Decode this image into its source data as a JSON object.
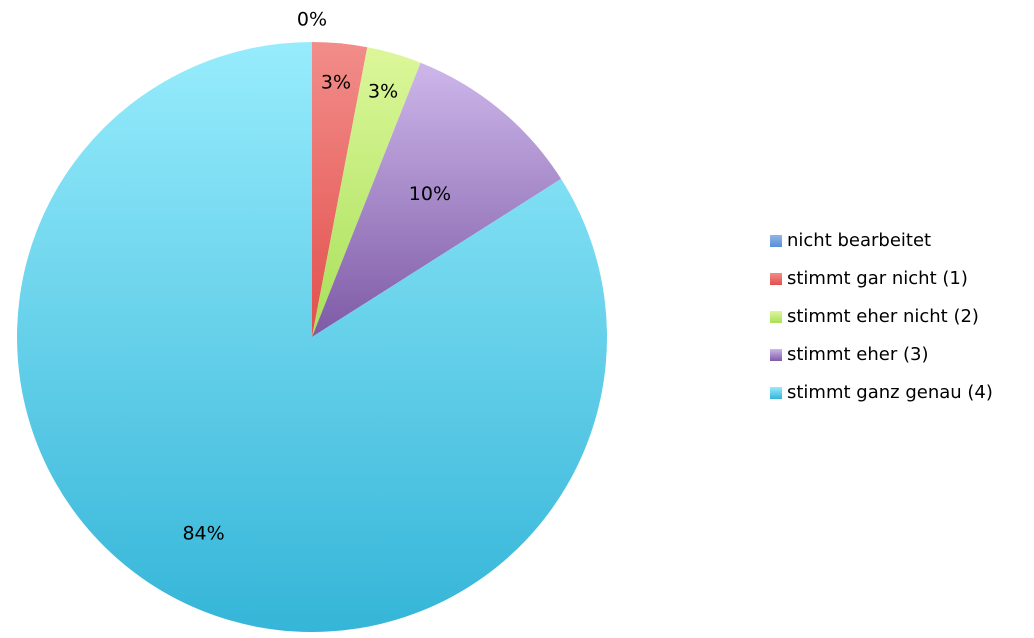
{
  "chart_data": {
    "type": "pie",
    "start_angle_deg": 90,
    "direction": "clockwise",
    "legend_position": "right",
    "slices": [
      {
        "name": "nicht bearbeitet",
        "value": 0,
        "label": "0%",
        "color": "#5a8ed6",
        "color_light": "#8fb6ea"
      },
      {
        "name": "stimmt gar nicht (1)",
        "value": 3,
        "label": "3%",
        "color": "#e2504c",
        "color_light": "#f28d8a"
      },
      {
        "name": "stimmt eher nicht (2)",
        "value": 3,
        "label": "3%",
        "color": "#a8e05a",
        "color_light": "#dcf79a"
      },
      {
        "name": "stimmt eher (3)",
        "value": 10,
        "label": "10%",
        "color": "#7e5aa6",
        "color_light": "#cdb7ea"
      },
      {
        "name": "stimmt ganz genau (4)",
        "value": 84,
        "label": "84%",
        "color": "#35b5d8",
        "color_light": "#97ecfc"
      }
    ]
  }
}
